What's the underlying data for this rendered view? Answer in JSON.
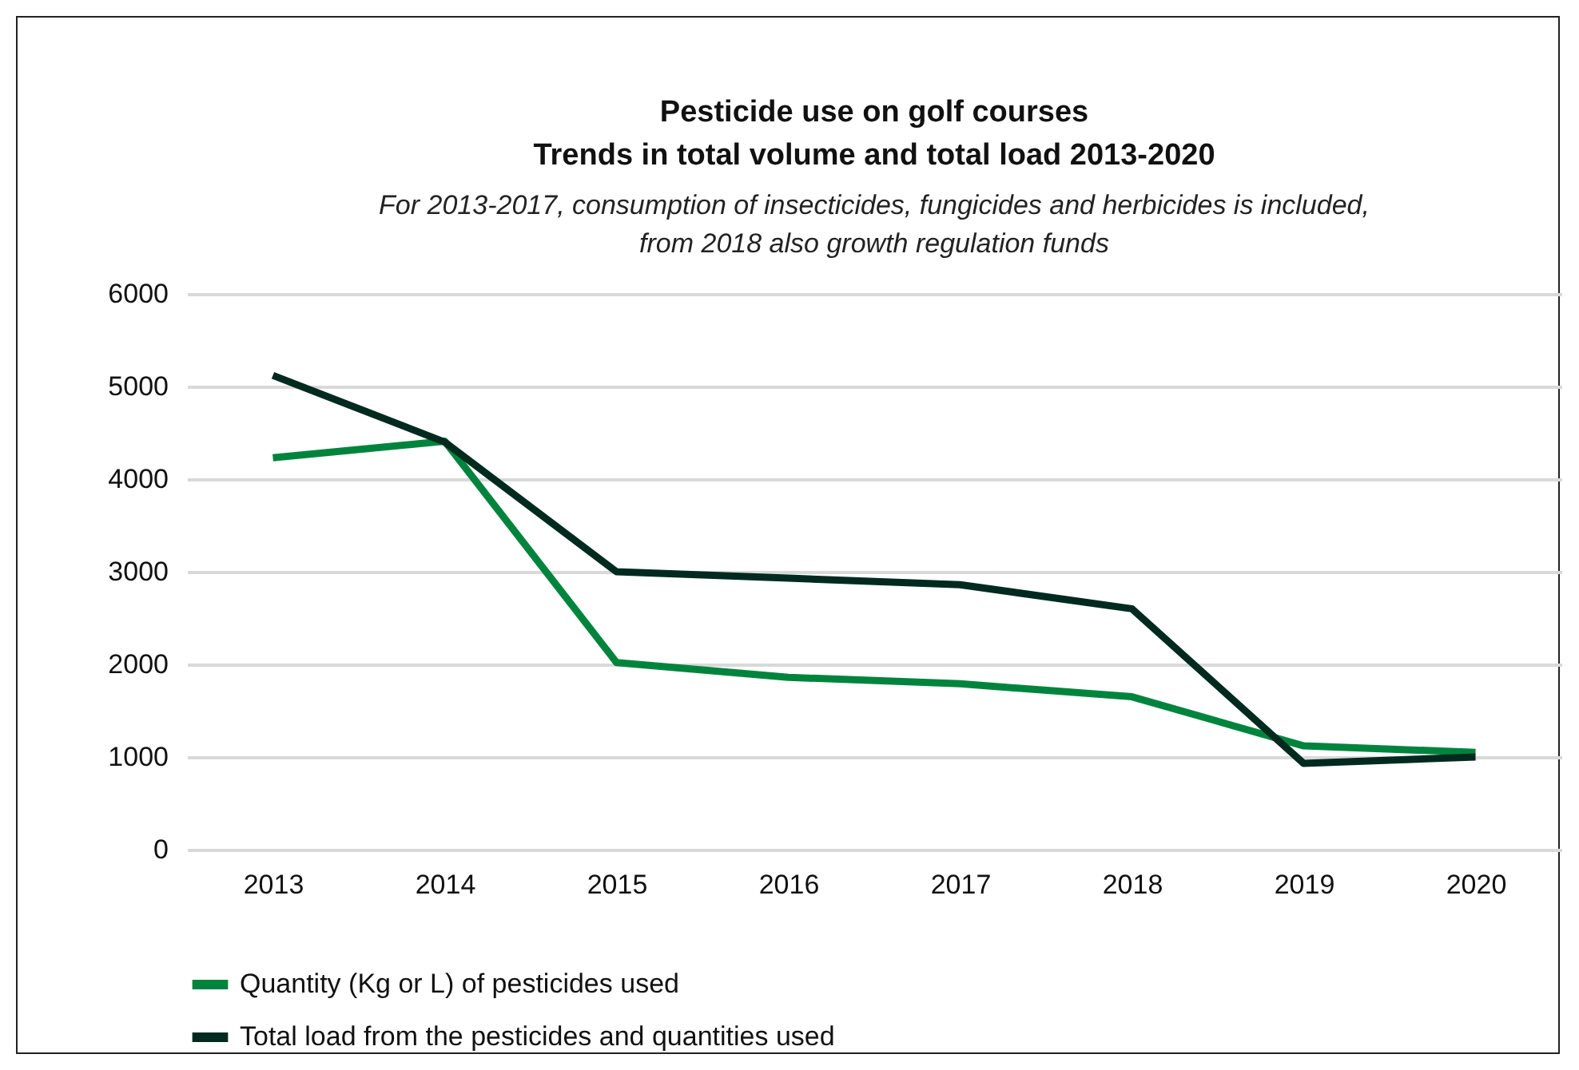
{
  "chart_data": {
    "type": "line",
    "title": "Pesticide use on golf courses\nTrends in total volume and total load 2013-2020",
    "subtitle": "For 2013-2017, consumption of insecticides, fungicides and herbicides is included,\nfrom 2018 also growth regulation funds",
    "categories": [
      "2013",
      "2014",
      "2015",
      "2016",
      "2017",
      "2018",
      "2019",
      "2020"
    ],
    "series": [
      {
        "name": "Quantity (Kg or L) of pesticides used",
        "color": "#00843d",
        "values": [
          4230,
          4410,
          2020,
          1860,
          1790,
          1650,
          1120,
          1050
        ]
      },
      {
        "name": "Total load from the pesticides and quantities used",
        "color": "#002a1e",
        "values": [
          5120,
          4400,
          3000,
          2930,
          2860,
          2600,
          930,
          1000
        ]
      }
    ],
    "ylim": [
      0,
      6000
    ],
    "yticks": [
      0,
      1000,
      2000,
      3000,
      4000,
      5000,
      6000
    ],
    "grid": "y",
    "legend": "bottom",
    "marker": "none",
    "line_style": "solid"
  }
}
